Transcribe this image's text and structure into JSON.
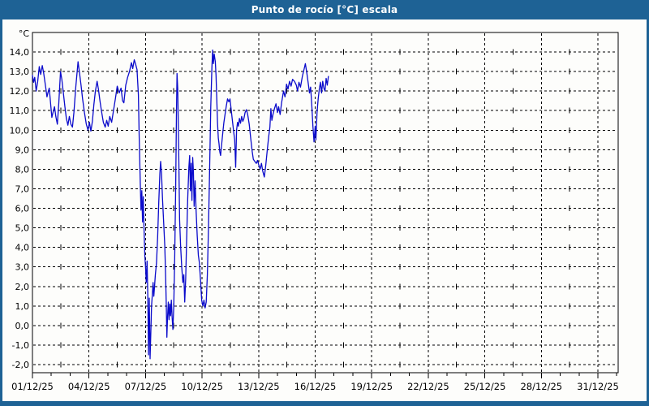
{
  "window": {
    "title": "Punto de rocío [°C] escala"
  },
  "colors": {
    "titlebar_bg": "#1e6295",
    "frame": "#1e6295",
    "title_text": "#ffffff",
    "plot_bg": "#fdfdfb",
    "grid": "#000000",
    "axis": "#000000",
    "tick_label": "#000000",
    "line": "#0b0bcb"
  },
  "chart_data": {
    "type": "line",
    "title": "Punto de rocío [°C] escala",
    "y_unit_label": "°C",
    "ylabel": "°C",
    "xlabel": "",
    "ylim": [
      -2,
      14
    ],
    "y_ticks": [
      14,
      13,
      12,
      11,
      10,
      9,
      8,
      7,
      6,
      5,
      4,
      3,
      2,
      1,
      0,
      -1,
      -2
    ],
    "y_tick_labels": [
      "14,0",
      "13,0",
      "12,0",
      "11,0",
      "10,0",
      "9,0",
      "8,0",
      "7,0",
      "6,0",
      "5,0",
      "4,0",
      "3,0",
      "2,0",
      "1,0",
      "0,0",
      "-1,0",
      "-2,0"
    ],
    "x_major_days": [
      1,
      4,
      7,
      10,
      13,
      16,
      19,
      22,
      25,
      28,
      31
    ],
    "x_tick_labels": [
      "01/12/25",
      "04/12/25",
      "07/12/25",
      "10/12/25",
      "13/12/25",
      "16/12/25",
      "19/12/25",
      "22/12/25",
      "25/12/25",
      "28/12/25",
      "31/12/25"
    ],
    "x_minor_step_days": 1,
    "x_crosshatch_midpoint_days": [
      2.5,
      5.5,
      8.5,
      11.5,
      14.5,
      17.5,
      20.5,
      23.5,
      26.5,
      29.5
    ],
    "x_range_days": [
      1,
      32.1
    ],
    "grid": "dashed-black",
    "legend_position": "none",
    "series": [
      {
        "name": "Punto de rocío",
        "color": "#0b0bcb",
        "points": [
          [
            1.0,
            12.8
          ],
          [
            1.06,
            12.45
          ],
          [
            1.12,
            12.7
          ],
          [
            1.2,
            12.0
          ],
          [
            1.28,
            12.5
          ],
          [
            1.36,
            13.25
          ],
          [
            1.44,
            12.85
          ],
          [
            1.52,
            13.3
          ],
          [
            1.6,
            12.9
          ],
          [
            1.7,
            12.2
          ],
          [
            1.77,
            11.7
          ],
          [
            1.83,
            11.95
          ],
          [
            1.89,
            12.15
          ],
          [
            1.96,
            11.4
          ],
          [
            2.03,
            10.65
          ],
          [
            2.1,
            10.95
          ],
          [
            2.17,
            11.2
          ],
          [
            2.24,
            10.7
          ],
          [
            2.32,
            10.3
          ],
          [
            2.4,
            11.4
          ],
          [
            2.49,
            13.0
          ],
          [
            2.56,
            12.6
          ],
          [
            2.64,
            11.9
          ],
          [
            2.72,
            11.2
          ],
          [
            2.8,
            10.6
          ],
          [
            2.88,
            10.25
          ],
          [
            2.96,
            10.7
          ],
          [
            3.04,
            10.3
          ],
          [
            3.12,
            10.15
          ],
          [
            3.2,
            10.9
          ],
          [
            3.3,
            12.2
          ],
          [
            3.42,
            13.5
          ],
          [
            3.5,
            12.9
          ],
          [
            3.58,
            12.3
          ],
          [
            3.66,
            11.6
          ],
          [
            3.76,
            10.9
          ],
          [
            3.86,
            10.3
          ],
          [
            3.95,
            10.0
          ],
          [
            4.02,
            10.4
          ],
          [
            4.1,
            9.95
          ],
          [
            4.18,
            10.45
          ],
          [
            4.26,
            11.3
          ],
          [
            4.34,
            12.0
          ],
          [
            4.43,
            12.5
          ],
          [
            4.5,
            12.1
          ],
          [
            4.58,
            11.5
          ],
          [
            4.66,
            11.0
          ],
          [
            4.76,
            10.4
          ],
          [
            4.86,
            10.15
          ],
          [
            4.94,
            10.5
          ],
          [
            5.02,
            10.2
          ],
          [
            5.1,
            10.7
          ],
          [
            5.2,
            10.4
          ],
          [
            5.3,
            11.0
          ],
          [
            5.4,
            11.6
          ],
          [
            5.5,
            12.25
          ],
          [
            5.6,
            11.9
          ],
          [
            5.7,
            12.15
          ],
          [
            5.78,
            11.5
          ],
          [
            5.85,
            11.4
          ],
          [
            5.95,
            12.3
          ],
          [
            6.05,
            12.7
          ],
          [
            6.15,
            13.0
          ],
          [
            6.25,
            13.45
          ],
          [
            6.32,
            13.15
          ],
          [
            6.4,
            13.6
          ],
          [
            6.48,
            13.35
          ],
          [
            6.55,
            13.1
          ],
          [
            6.62,
            11.8
          ],
          [
            6.66,
            9.8
          ],
          [
            6.72,
            7.3
          ],
          [
            6.76,
            5.9
          ],
          [
            6.8,
            6.9
          ],
          [
            6.84,
            5.3
          ],
          [
            6.88,
            6.6
          ],
          [
            6.92,
            5.0
          ],
          [
            6.96,
            3.6
          ],
          [
            7.0,
            3.0
          ],
          [
            7.04,
            2.2
          ],
          [
            7.08,
            3.3
          ],
          [
            7.12,
            1.5
          ],
          [
            7.16,
            -1.5
          ],
          [
            7.2,
            1.4
          ],
          [
            7.24,
            -1.7
          ],
          [
            7.28,
            -0.4
          ],
          [
            7.32,
            1.0
          ],
          [
            7.36,
            1.6
          ],
          [
            7.4,
            2.2
          ],
          [
            7.44,
            1.5
          ],
          [
            7.48,
            2.0
          ],
          [
            7.52,
            2.6
          ],
          [
            7.58,
            3.2
          ],
          [
            7.64,
            4.5
          ],
          [
            7.7,
            6.3
          ],
          [
            7.76,
            7.8
          ],
          [
            7.8,
            8.4
          ],
          [
            7.85,
            7.8
          ],
          [
            7.9,
            6.5
          ],
          [
            7.96,
            5.3
          ],
          [
            8.02,
            4.1
          ],
          [
            8.06,
            2.8
          ],
          [
            8.1,
            1.0
          ],
          [
            8.13,
            -0.6
          ],
          [
            8.17,
            0.5
          ],
          [
            8.21,
            1.2
          ],
          [
            8.25,
            0.3
          ],
          [
            8.29,
            1.1
          ],
          [
            8.33,
            0.5
          ],
          [
            8.37,
            1.3
          ],
          [
            8.41,
            0.4
          ],
          [
            8.45,
            -0.2
          ],
          [
            8.5,
            1.0
          ],
          [
            8.55,
            3.6
          ],
          [
            8.6,
            7.2
          ],
          [
            8.64,
            10.8
          ],
          [
            8.67,
            12.9
          ],
          [
            8.71,
            12.1
          ],
          [
            8.76,
            8.9
          ],
          [
            8.81,
            5.4
          ],
          [
            8.86,
            4.1
          ],
          [
            8.92,
            3.0
          ],
          [
            8.98,
            2.2
          ],
          [
            9.03,
            2.6
          ],
          [
            9.08,
            1.2
          ],
          [
            9.13,
            2.4
          ],
          [
            9.18,
            4.3
          ],
          [
            9.24,
            6.5
          ],
          [
            9.3,
            8.1
          ],
          [
            9.34,
            8.7
          ],
          [
            9.38,
            6.9
          ],
          [
            9.42,
            8.3
          ],
          [
            9.46,
            6.4
          ],
          [
            9.5,
            8.6
          ],
          [
            9.54,
            7.9
          ],
          [
            9.58,
            6.1
          ],
          [
            9.63,
            7.4
          ],
          [
            9.68,
            5.9
          ],
          [
            9.74,
            4.6
          ],
          [
            9.8,
            3.6
          ],
          [
            9.86,
            3.2
          ],
          [
            9.92,
            2.3
          ],
          [
            9.98,
            1.3
          ],
          [
            10.04,
            1.0
          ],
          [
            10.1,
            1.3
          ],
          [
            10.16,
            0.9
          ],
          [
            10.22,
            1.2
          ],
          [
            10.28,
            2.6
          ],
          [
            10.34,
            5.0
          ],
          [
            10.4,
            8.0
          ],
          [
            10.46,
            11.2
          ],
          [
            10.52,
            13.2
          ],
          [
            10.56,
            14.1
          ],
          [
            10.6,
            13.4
          ],
          [
            10.64,
            13.9
          ],
          [
            10.7,
            13.5
          ],
          [
            10.74,
            12.8
          ],
          [
            10.78,
            11.6
          ],
          [
            10.82,
            10.4
          ],
          [
            10.86,
            9.6
          ],
          [
            10.9,
            9.3
          ],
          [
            10.94,
            8.9
          ],
          [
            10.98,
            8.7
          ],
          [
            11.04,
            9.3
          ],
          [
            11.1,
            9.9
          ],
          [
            11.16,
            10.4
          ],
          [
            11.22,
            10.8
          ],
          [
            11.28,
            11.2
          ],
          [
            11.35,
            11.6
          ],
          [
            11.42,
            11.45
          ],
          [
            11.48,
            11.6
          ],
          [
            11.55,
            11.0
          ],
          [
            11.62,
            10.4
          ],
          [
            11.68,
            9.9
          ],
          [
            11.73,
            9.5
          ],
          [
            11.78,
            8.1
          ],
          [
            11.83,
            10.0
          ],
          [
            11.88,
            10.4
          ],
          [
            11.93,
            10.2
          ],
          [
            11.98,
            10.6
          ],
          [
            12.04,
            10.35
          ],
          [
            12.1,
            10.7
          ],
          [
            12.16,
            10.45
          ],
          [
            12.22,
            10.6
          ],
          [
            12.28,
            10.9
          ],
          [
            12.35,
            11.05
          ],
          [
            12.42,
            10.8
          ],
          [
            12.5,
            10.3
          ],
          [
            12.58,
            9.6
          ],
          [
            12.66,
            8.9
          ],
          [
            12.72,
            8.5
          ],
          [
            12.8,
            8.4
          ],
          [
            12.88,
            8.3
          ],
          [
            12.94,
            8.45
          ],
          [
            13.0,
            8.25
          ],
          [
            13.08,
            8.0
          ],
          [
            13.15,
            8.3
          ],
          [
            13.22,
            7.9
          ],
          [
            13.3,
            7.6
          ],
          [
            13.38,
            8.2
          ],
          [
            13.46,
            9.0
          ],
          [
            13.54,
            9.7
          ],
          [
            13.6,
            10.15
          ],
          [
            13.65,
            11.1
          ],
          [
            13.7,
            10.5
          ],
          [
            13.76,
            10.8
          ],
          [
            13.84,
            11.1
          ],
          [
            13.92,
            11.35
          ],
          [
            14.0,
            10.9
          ],
          [
            14.06,
            11.2
          ],
          [
            14.14,
            10.8
          ],
          [
            14.22,
            11.4
          ],
          [
            14.32,
            12.0
          ],
          [
            14.4,
            11.7
          ],
          [
            14.48,
            12.35
          ],
          [
            14.56,
            12.1
          ],
          [
            14.64,
            12.5
          ],
          [
            14.72,
            12.25
          ],
          [
            14.8,
            12.6
          ],
          [
            14.9,
            12.5
          ],
          [
            15.0,
            12.3
          ],
          [
            15.06,
            12.0
          ],
          [
            15.14,
            12.45
          ],
          [
            15.22,
            12.2
          ],
          [
            15.32,
            12.75
          ],
          [
            15.42,
            13.15
          ],
          [
            15.48,
            13.4
          ],
          [
            15.56,
            12.9
          ],
          [
            15.64,
            12.35
          ],
          [
            15.7,
            11.9
          ],
          [
            15.76,
            12.2
          ],
          [
            15.82,
            11.3
          ],
          [
            15.88,
            10.2
          ],
          [
            15.94,
            9.4
          ],
          [
            16.0,
            10.2
          ],
          [
            16.04,
            9.5
          ],
          [
            16.1,
            10.9
          ],
          [
            16.16,
            11.6
          ],
          [
            16.22,
            12.1
          ],
          [
            16.28,
            12.45
          ],
          [
            16.34,
            11.9
          ],
          [
            16.4,
            12.5
          ],
          [
            16.46,
            12.15
          ],
          [
            16.52,
            12.0
          ],
          [
            16.58,
            12.65
          ],
          [
            16.64,
            12.3
          ],
          [
            16.7,
            12.75
          ]
        ]
      }
    ]
  }
}
